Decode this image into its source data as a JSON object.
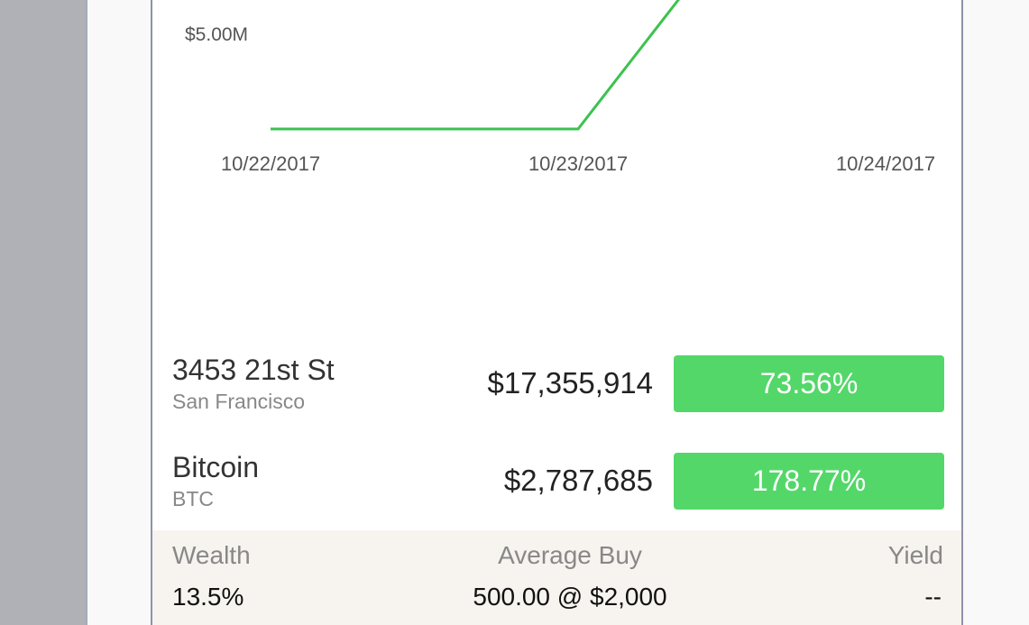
{
  "chart_data": {
    "type": "line",
    "x": [
      "10/22/2017",
      "10/23/2017",
      "10/24/2017"
    ],
    "series": [
      {
        "values": [
          3900000,
          3900000,
          8500000
        ],
        "color": "#3cc24f"
      }
    ],
    "y_tick_labels": [
      "$5.00M"
    ],
    "x_tick_labels": [
      "10/22/2017",
      "10/23/2017",
      "10/24/2017"
    ],
    "grid": false
  },
  "holdings": [
    {
      "name": "3453 21st St",
      "subtitle": "San Francisco",
      "value": "$17,355,914",
      "change": "73.56%",
      "change_color": "#53d769"
    },
    {
      "name": "Bitcoin",
      "subtitle": "BTC",
      "value": "$2,787,685",
      "change": "178.77%",
      "change_color": "#53d769"
    }
  ],
  "stats": {
    "wealth_label": "Wealth",
    "wealth_value": "13.5%",
    "average_buy_label": "Average Buy",
    "average_buy_value": "500.00 @ $2,000",
    "yield_label": "Yield",
    "yield_value": "--"
  },
  "colors": {
    "accent_green": "#53d769",
    "line_green": "#3cc24f",
    "stats_background": "#f7f3ee"
  }
}
